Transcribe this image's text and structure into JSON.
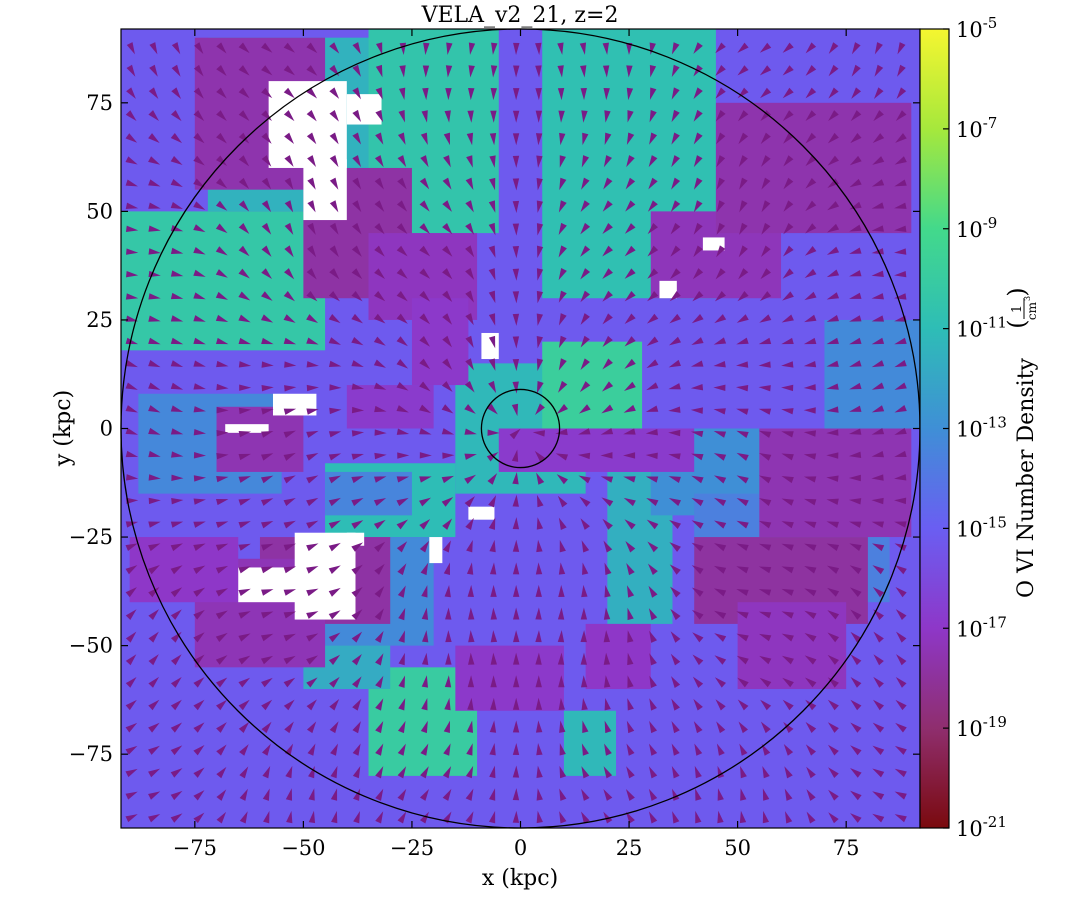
{
  "chart_data": {
    "type": "heatmap",
    "title": "VELA_v2_21, z=2",
    "xlabel": "x  (kpc)",
    "ylabel": "y  (kpc)",
    "xlim": [
      -92,
      92
    ],
    "ylim": [
      -92,
      92
    ],
    "x_ticks": [
      -75,
      -50,
      -25,
      0,
      25,
      50,
      75
    ],
    "y_ticks": [
      75,
      50,
      25,
      0,
      -25,
      -50,
      -75
    ],
    "x_tick_labels": [
      "−75",
      "−50",
      "−25",
      "0",
      "25",
      "50",
      "75"
    ],
    "y_tick_labels": [
      "75",
      "50",
      "25",
      "0",
      "−25",
      "−50",
      "−75"
    ],
    "colorbar": {
      "label": "O VI Number Density",
      "unit_numerator": "1",
      "unit_denominator": "cm",
      "unit_exponent": "3",
      "scale": "log",
      "range": [
        1e-21,
        1e-05
      ],
      "ticks": [
        {
          "value": -5,
          "mantissa": "10",
          "exponent": "-5"
        },
        {
          "value": -7,
          "mantissa": "10",
          "exponent": "-7"
        },
        {
          "value": -9,
          "mantissa": "10",
          "exponent": "-9"
        },
        {
          "value": -11,
          "mantissa": "10",
          "exponent": "-11"
        },
        {
          "value": -13,
          "mantissa": "10",
          "exponent": "-13"
        },
        {
          "value": -15,
          "mantissa": "10",
          "exponent": "-15"
        },
        {
          "value": -17,
          "mantissa": "10",
          "exponent": "-17"
        },
        {
          "value": -19,
          "mantissa": "10",
          "exponent": "-19"
        },
        {
          "value": -21,
          "mantissa": "10",
          "exponent": "-21"
        }
      ],
      "colors": [
        "#7a0a0e",
        "#8f2e6e",
        "#8e37c8",
        "#6a5ef2",
        "#3f8fd6",
        "#2ebdb6",
        "#43d98b",
        "#a6e83c",
        "#f5f630"
      ]
    },
    "circles_kpc": [
      92,
      9
    ],
    "regions": [
      {
        "x": [
          -92,
          92
        ],
        "y": [
          -92,
          92
        ],
        "level": -15.2
      },
      {
        "x": [
          -92,
          -45
        ],
        "y": [
          18,
          50
        ],
        "level": -10.3
      },
      {
        "x": [
          -72,
          -35
        ],
        "y": [
          50,
          90
        ],
        "level": -11.5
      },
      {
        "x": [
          -35,
          -5
        ],
        "y": [
          45,
          92
        ],
        "level": -10.5
      },
      {
        "x": [
          5,
          45
        ],
        "y": [
          30,
          92
        ],
        "level": -10.8
      },
      {
        "x": [
          -45,
          -15
        ],
        "y": [
          -25,
          -8
        ],
        "level": -11.0
      },
      {
        "x": [
          -35,
          -10
        ],
        "y": [
          -80,
          -55
        ],
        "level": -10.0
      },
      {
        "x": [
          -50,
          -30
        ],
        "y": [
          -60,
          -45
        ],
        "level": -11.8
      },
      {
        "x": [
          10,
          22
        ],
        "y": [
          -80,
          -65
        ],
        "level": -11.2
      },
      {
        "x": [
          20,
          35
        ],
        "y": [
          -45,
          -10
        ],
        "level": -11.6
      },
      {
        "x": [
          -15,
          15
        ],
        "y": [
          -15,
          15
        ],
        "level": -11.2
      },
      {
        "x": [
          5,
          28
        ],
        "y": [
          0,
          20
        ],
        "level": -9.8
      },
      {
        "x": [
          -88,
          -55
        ],
        "y": [
          -15,
          8
        ],
        "level": -13.3
      },
      {
        "x": [
          -50,
          -20
        ],
        "y": [
          -50,
          -25
        ],
        "level": -13.2
      },
      {
        "x": [
          -45,
          -25
        ],
        "y": [
          -20,
          -10
        ],
        "level": -13.4
      },
      {
        "x": [
          30,
          70
        ],
        "y": [
          -20,
          0
        ],
        "level": -13.0
      },
      {
        "x": [
          40,
          85
        ],
        "y": [
          -40,
          -15
        ],
        "level": -13.6
      },
      {
        "x": [
          70,
          92
        ],
        "y": [
          0,
          25
        ],
        "level": -13.2
      },
      {
        "x": [
          -75,
          -45
        ],
        "y": [
          55,
          90
        ],
        "level": -17.6
      },
      {
        "x": [
          -50,
          -25
        ],
        "y": [
          30,
          60
        ],
        "level": -17.8
      },
      {
        "x": [
          -35,
          -10
        ],
        "y": [
          25,
          45
        ],
        "level": -17.2
      },
      {
        "x": [
          -25,
          -12
        ],
        "y": [
          10,
          30
        ],
        "level": -16.9
      },
      {
        "x": [
          -70,
          -50
        ],
        "y": [
          -10,
          5
        ],
        "level": -17.5
      },
      {
        "x": [
          -60,
          -30
        ],
        "y": [
          -45,
          -25
        ],
        "level": -17.8
      },
      {
        "x": [
          -75,
          -45
        ],
        "y": [
          -55,
          -30
        ],
        "level": -17.4
      },
      {
        "x": [
          -90,
          -65
        ],
        "y": [
          -40,
          -25
        ],
        "level": -17.0
      },
      {
        "x": [
          30,
          60
        ],
        "y": [
          30,
          50
        ],
        "level": -17.3
      },
      {
        "x": [
          45,
          90
        ],
        "y": [
          45,
          75
        ],
        "level": -17.6
      },
      {
        "x": [
          55,
          90
        ],
        "y": [
          -25,
          0
        ],
        "level": -17.5
      },
      {
        "x": [
          40,
          80
        ],
        "y": [
          -45,
          -25
        ],
        "level": -17.9
      },
      {
        "x": [
          50,
          75
        ],
        "y": [
          -60,
          -40
        ],
        "level": -17.2
      },
      {
        "x": [
          -15,
          10
        ],
        "y": [
          -65,
          -50
        ],
        "level": -16.9
      },
      {
        "x": [
          15,
          30
        ],
        "y": [
          -60,
          -45
        ],
        "level": -17.0
      },
      {
        "x": [
          -5,
          40
        ],
        "y": [
          -10,
          0
        ],
        "level": -16.8
      },
      {
        "x": [
          -40,
          -20
        ],
        "y": [
          0,
          10
        ],
        "level": -16.8
      }
    ],
    "empty_regions": [
      {
        "x": [
          -58,
          -40
        ],
        "y": [
          60,
          80
        ]
      },
      {
        "x": [
          -50,
          -40
        ],
        "y": [
          48,
          62
        ]
      },
      {
        "x": [
          -40,
          -32
        ],
        "y": [
          70,
          77
        ]
      },
      {
        "x": [
          -52,
          -38
        ],
        "y": [
          -44,
          -24
        ]
      },
      {
        "x": [
          -65,
          -50
        ],
        "y": [
          -40,
          -32
        ]
      },
      {
        "x": [
          -40,
          -36
        ],
        "y": [
          -27,
          -24
        ]
      },
      {
        "x": [
          -68,
          -58
        ],
        "y": [
          -1,
          1
        ]
      },
      {
        "x": [
          -57,
          -47
        ],
        "y": [
          3,
          8
        ]
      },
      {
        "x": [
          -5,
          -9
        ],
        "y": [
          16,
          22
        ]
      },
      {
        "x": [
          42,
          47
        ],
        "y": [
          41,
          44
        ]
      },
      {
        "x": [
          32,
          36
        ],
        "y": [
          30,
          34
        ]
      },
      {
        "x": [
          -6,
          -12
        ],
        "y": [
          -21,
          -18
        ]
      },
      {
        "x": [
          -21,
          -18
        ],
        "y": [
          -31,
          -25
        ]
      }
    ],
    "vector_field": {
      "grid_step_kpc": 5.2,
      "arrow_color": "#7a1b86",
      "pattern": "radial-inflow"
    }
  }
}
